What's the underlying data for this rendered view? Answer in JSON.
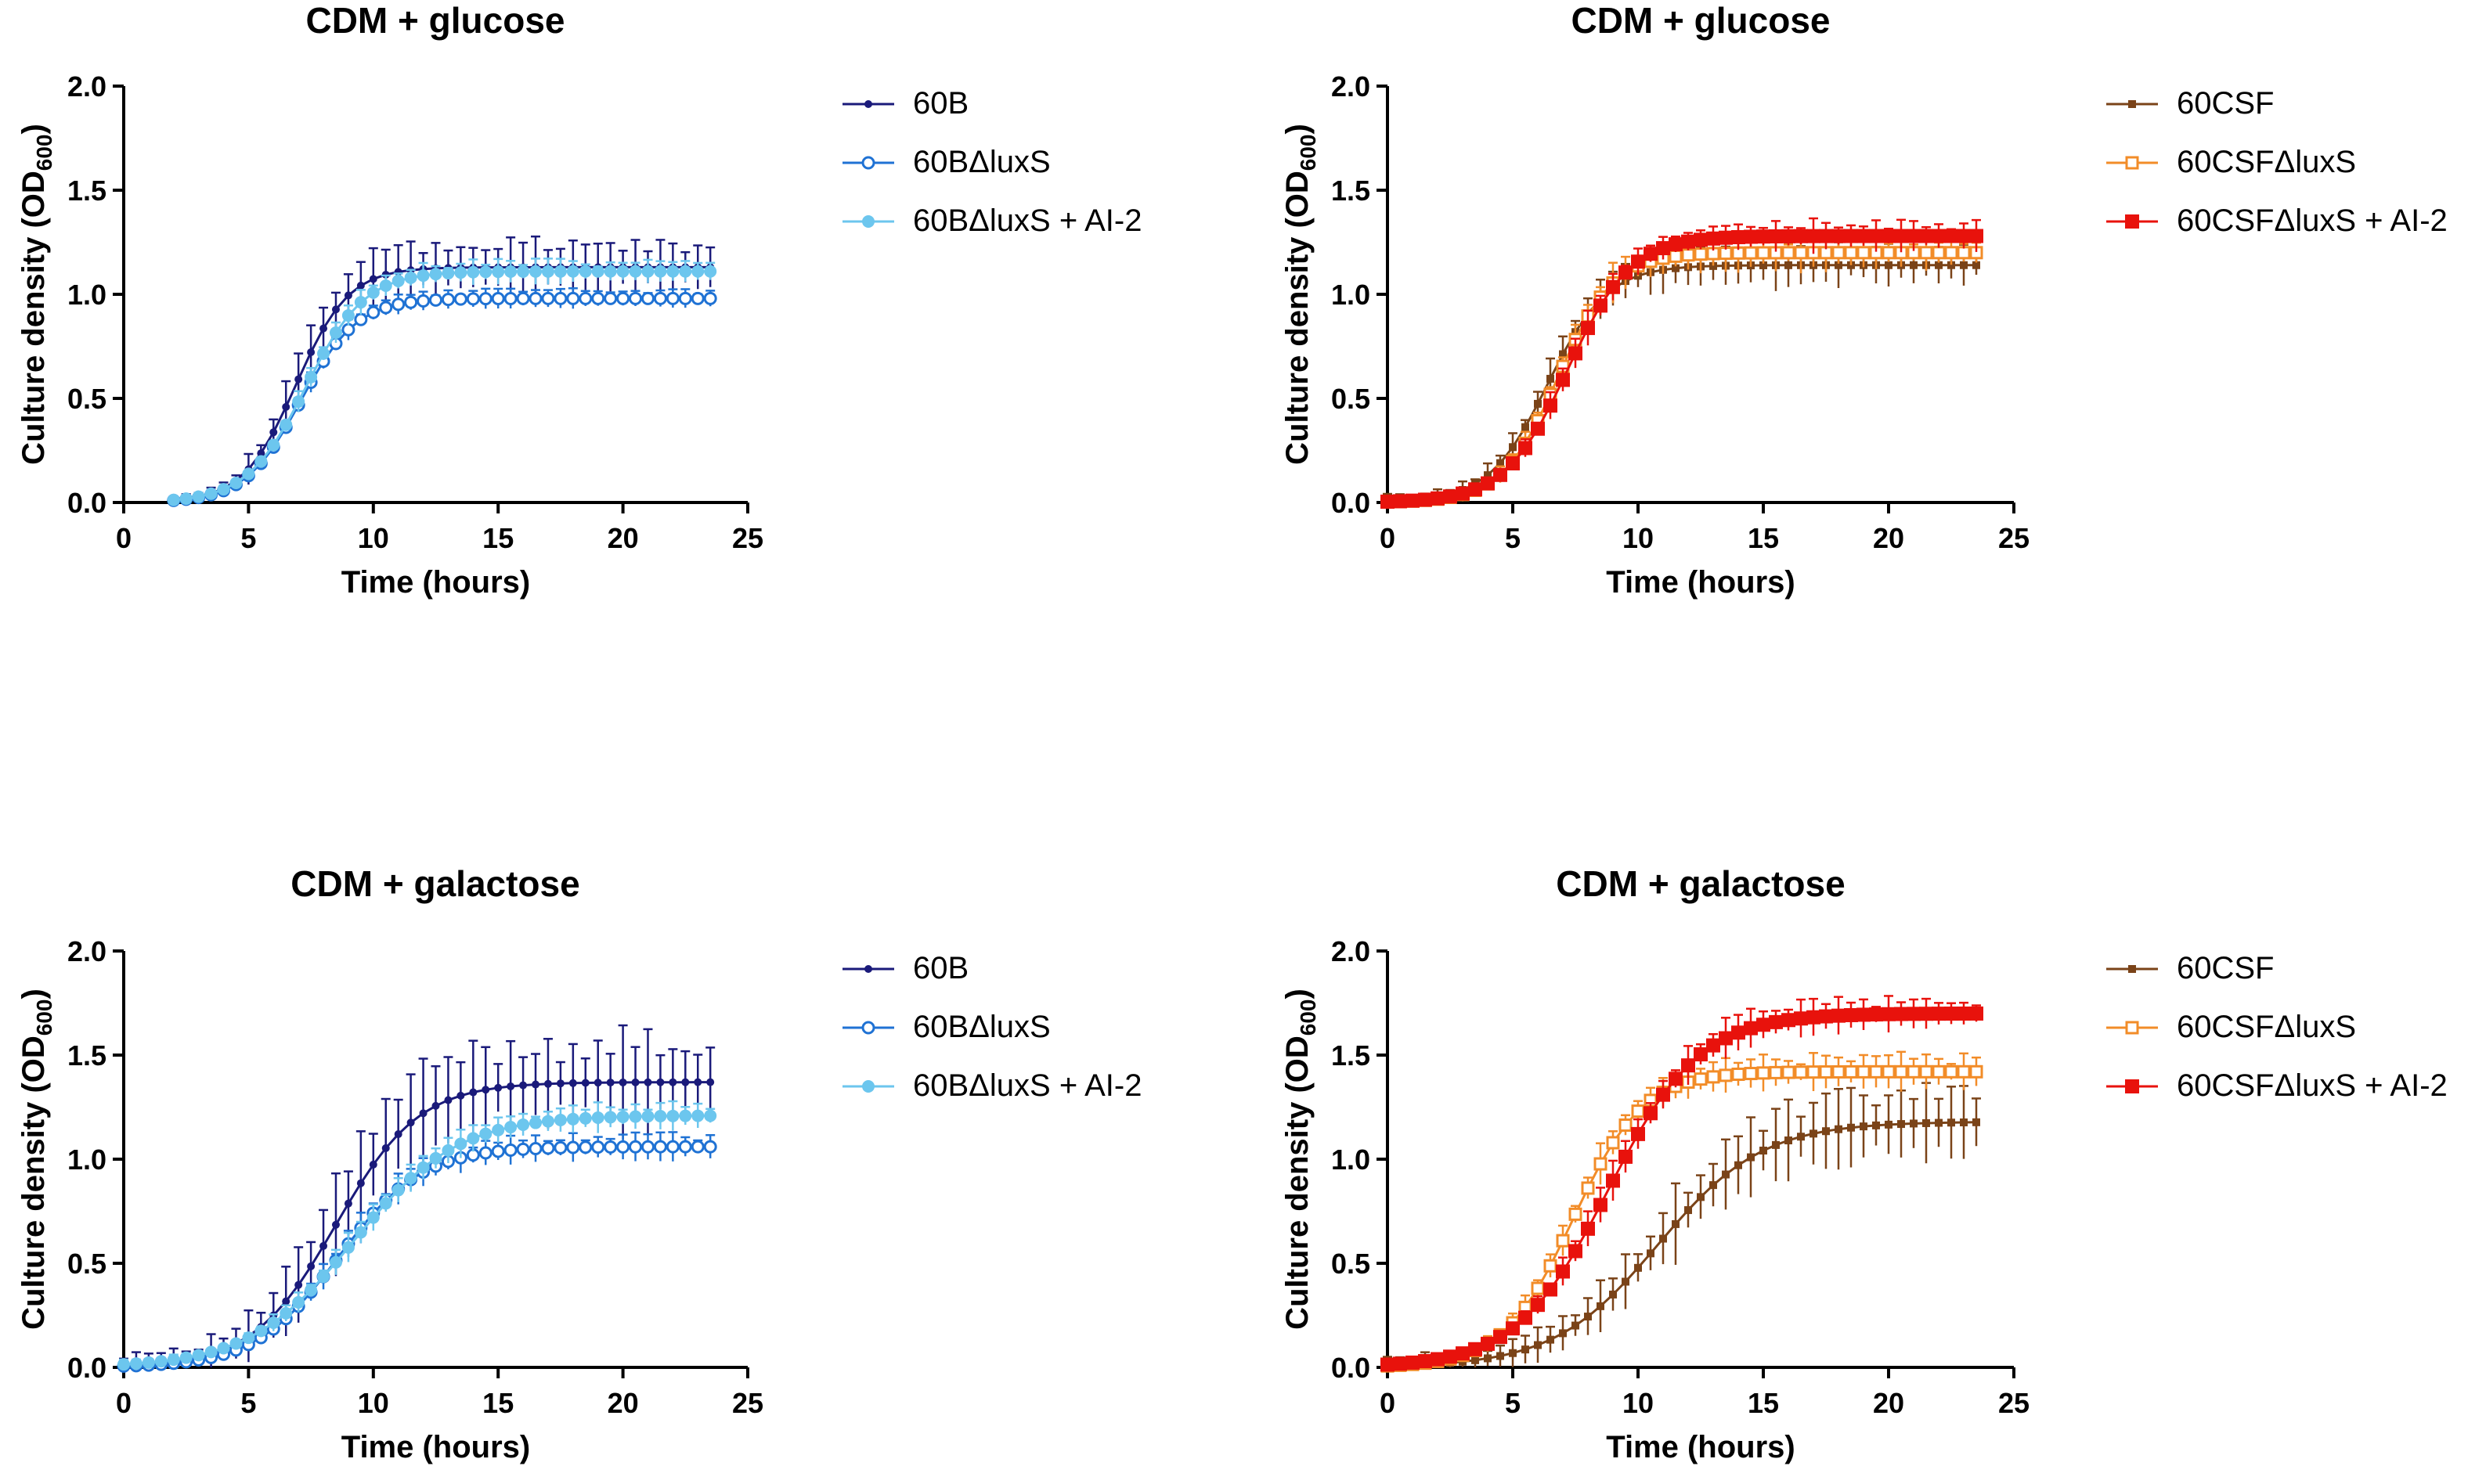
{
  "chart_data": [
    {
      "type": "line",
      "title": "CDM + glucose",
      "xlabel": "Time (hours)",
      "ylabel_main": "Culture density (OD",
      "ylabel_sub": "600",
      "ylabel_close": ")",
      "xlim": [
        0,
        25
      ],
      "ylim": [
        0,
        2.0
      ],
      "xticks": [
        "0",
        "5",
        "10",
        "15",
        "20",
        "25"
      ],
      "yticks": [
        "0.0",
        "0.5",
        "1.0",
        "1.5",
        "2.0"
      ],
      "series": [
        {
          "name": "60B",
          "color": "#1a1a7a",
          "marker": "dot",
          "midpoint": 6.9,
          "rate": 0.95,
          "plateau": 1.13,
          "error": 0.12
        },
        {
          "name": "60BΔluxS",
          "color": "#1f72d4",
          "marker": "open-circle",
          "midpoint": 7.1,
          "rate": 0.9,
          "plateau": 0.98,
          "error": 0.04
        },
        {
          "name": "60BΔluxS + AI-2",
          "color": "#6cc6ee",
          "marker": "filled-circle",
          "midpoint": 7.3,
          "rate": 0.85,
          "plateau": 1.11,
          "error": 0.05
        }
      ]
    },
    {
      "type": "line",
      "title": "CDM + glucose",
      "xlabel": "Time (hours)",
      "ylabel_main": "Culture density (OD",
      "ylabel_sub": "600",
      "ylabel_close": ")",
      "xlim": [
        0,
        25
      ],
      "ylim": [
        0,
        2.0
      ],
      "xticks": [
        "0",
        "5",
        "10",
        "15",
        "20",
        "25"
      ],
      "yticks": [
        "0.0",
        "0.5",
        "1.0",
        "1.5",
        "2.0"
      ],
      "series": [
        {
          "name": "60CSF",
          "color": "#7a4318",
          "marker": "square-small",
          "midpoint": 6.4,
          "rate": 0.85,
          "plateau": 1.14,
          "error": 0.1
        },
        {
          "name": "60CSFΔluxS",
          "color": "#f28c28",
          "marker": "open-square",
          "midpoint": 6.8,
          "rate": 0.9,
          "plateau": 1.2,
          "error": 0.08
        },
        {
          "name": "60CSFΔluxS + AI-2",
          "color": "#e8120c",
          "marker": "filled-square",
          "midpoint": 7.2,
          "rate": 0.8,
          "plateau": 1.28,
          "error": 0.07
        }
      ]
    },
    {
      "type": "line",
      "title": "CDM + galactose",
      "xlabel": "Time (hours)",
      "ylabel_main": "Culture density (OD",
      "ylabel_sub": "600",
      "ylabel_close": ")",
      "xlim": [
        0,
        25
      ],
      "ylim": [
        0,
        2.0
      ],
      "xticks": [
        "0",
        "5",
        "10",
        "15",
        "20",
        "25"
      ],
      "yticks": [
        "0.0",
        "0.5",
        "1.0",
        "1.5",
        "2.0"
      ],
      "series": [
        {
          "name": "60B",
          "color": "#1a1a7a",
          "marker": "dot",
          "midpoint": 8.5,
          "rate": 0.6,
          "plateau": 1.37,
          "error": 0.22
        },
        {
          "name": "60BΔluxS",
          "color": "#1f72d4",
          "marker": "open-circle",
          "midpoint": 8.6,
          "rate": 0.6,
          "plateau": 1.06,
          "error": 0.06
        },
        {
          "name": "60BΔluxS + AI-2",
          "color": "#6cc6ee",
          "marker": "filled-circle",
          "midpoint": 9.2,
          "rate": 0.48,
          "plateau": 1.21,
          "error": 0.06
        }
      ]
    },
    {
      "type": "line",
      "title": "CDM + galactose",
      "xlabel": "Time (hours)",
      "ylabel_main": "Culture density (OD",
      "ylabel_sub": "600",
      "ylabel_close": ")",
      "xlim": [
        0,
        25
      ],
      "ylim": [
        0,
        2.0
      ],
      "xticks": [
        "0",
        "5",
        "10",
        "15",
        "20",
        "25"
      ],
      "yticks": [
        "0.0",
        "0.5",
        "1.0",
        "1.5",
        "2.0"
      ],
      "series": [
        {
          "name": "60CSF",
          "color": "#7a4318",
          "marker": "square-small",
          "midpoint": 10.8,
          "rate": 0.48,
          "plateau": 1.18,
          "error": 0.16
        },
        {
          "name": "60CSFΔluxS",
          "color": "#f28c28",
          "marker": "open-square",
          "midpoint": 7.4,
          "rate": 0.72,
          "plateau": 1.42,
          "error": 0.08
        },
        {
          "name": "60CSFΔluxS + AI-2",
          "color": "#e8120c",
          "marker": "filled-square",
          "midpoint": 8.8,
          "rate": 0.55,
          "plateau": 1.7,
          "error": 0.08
        }
      ]
    }
  ]
}
